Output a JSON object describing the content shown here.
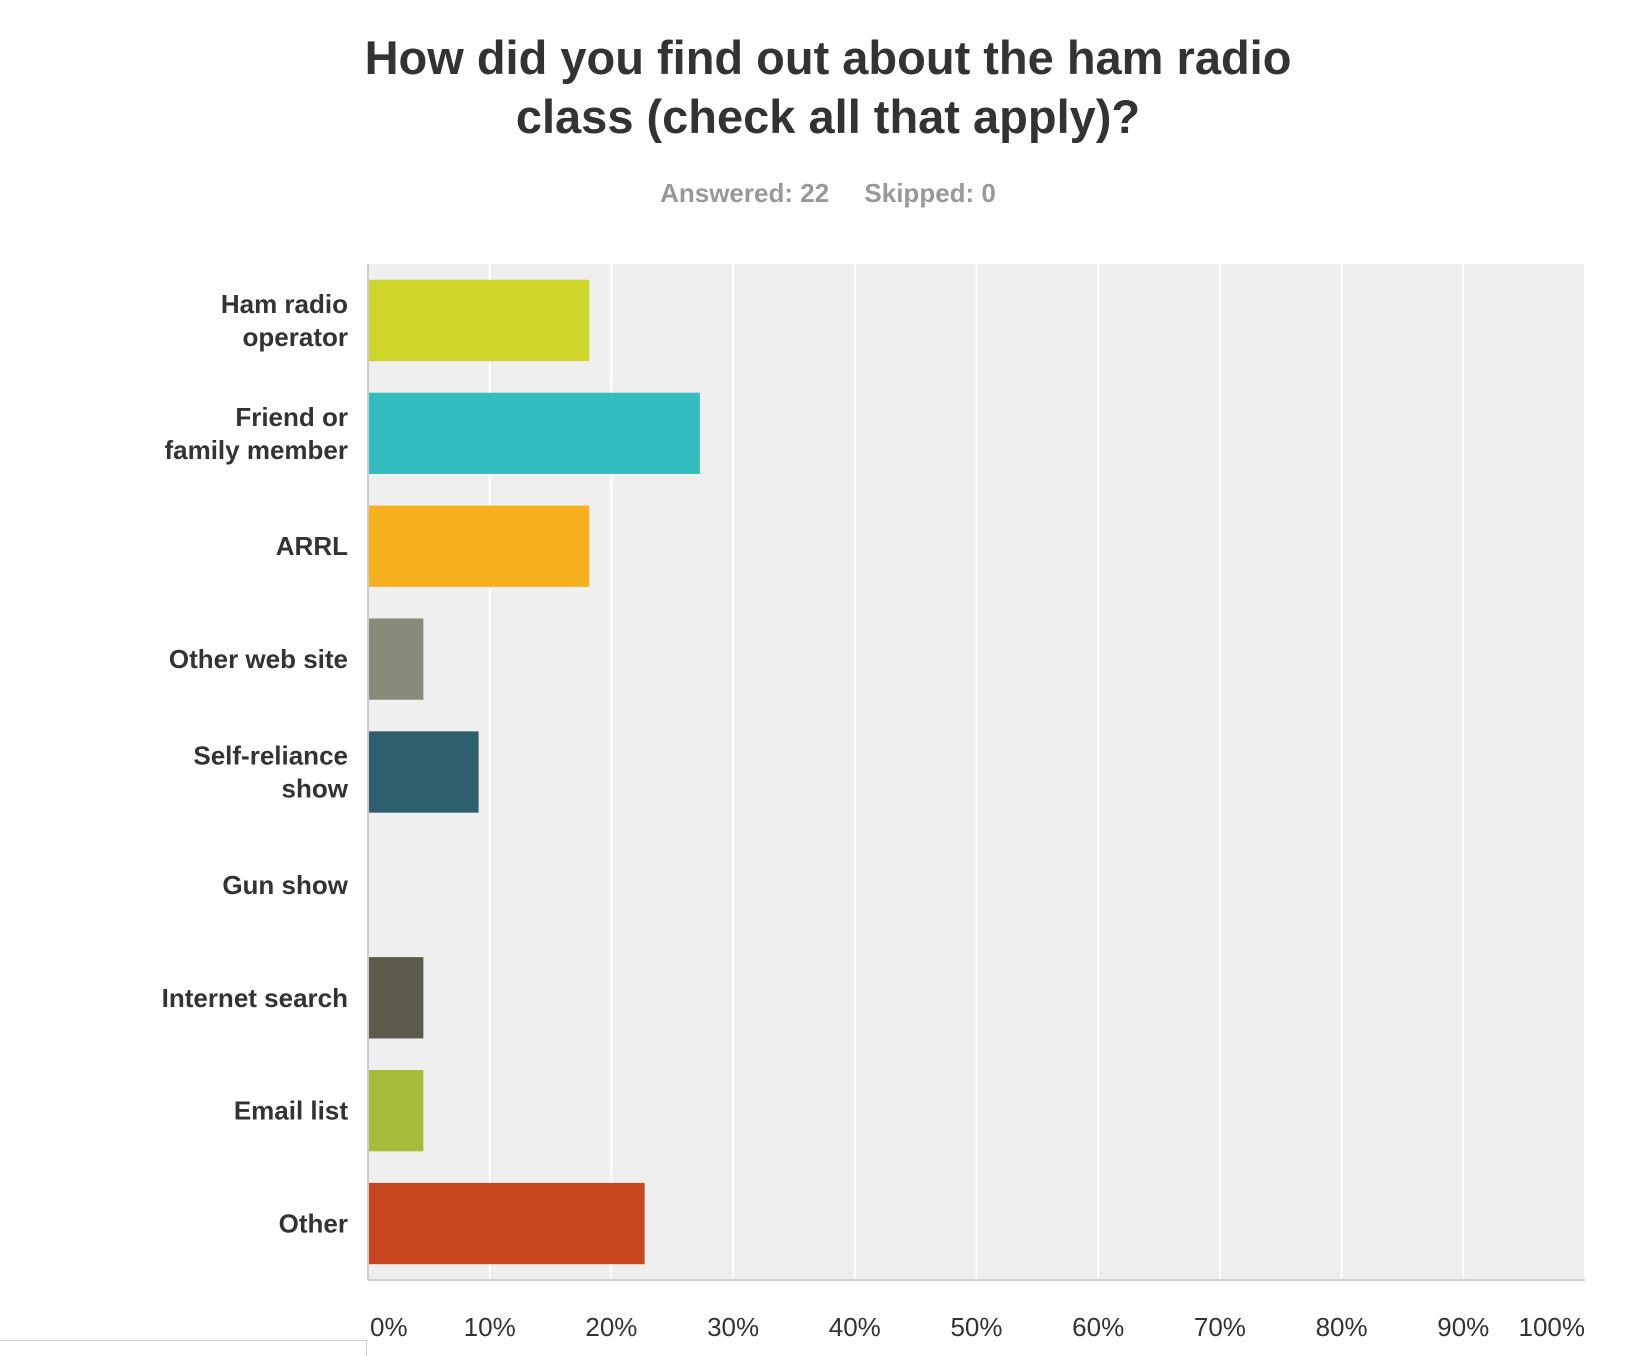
{
  "header": {
    "title_line1": "How did you find out about the ham radio",
    "title_line2": "class (check all that apply)?",
    "answered": "Answered: 22",
    "skipped": "Skipped: 0"
  },
  "chart_data": {
    "type": "bar",
    "orientation": "horizontal",
    "categories": [
      [
        "Ham radio",
        "operator"
      ],
      [
        "Friend or",
        "family member"
      ],
      [
        "ARRL"
      ],
      [
        "Other web site"
      ],
      [
        "Self-reliance",
        "show"
      ],
      [
        "Gun show"
      ],
      [
        "Internet search"
      ],
      [
        "Email list"
      ],
      [
        "Other"
      ]
    ],
    "values": [
      18.18,
      27.27,
      18.18,
      4.55,
      9.09,
      0,
      4.55,
      4.55,
      22.73
    ],
    "colors": [
      "#cdd52a",
      "#33bdbf",
      "#f7b01e",
      "#8a8a7a",
      "#2e5f6d",
      "#cccccc",
      "#5c5a4a",
      "#a7bd3a",
      "#c7461d"
    ],
    "xlim": [
      0,
      100
    ],
    "x_ticks": [
      "0%",
      "10%",
      "20%",
      "30%",
      "40%",
      "50%",
      "60%",
      "70%",
      "80%",
      "90%",
      "100%"
    ],
    "grid": true,
    "plot_background": "#efefef",
    "grid_color": "#ffffff",
    "legend": "none"
  }
}
